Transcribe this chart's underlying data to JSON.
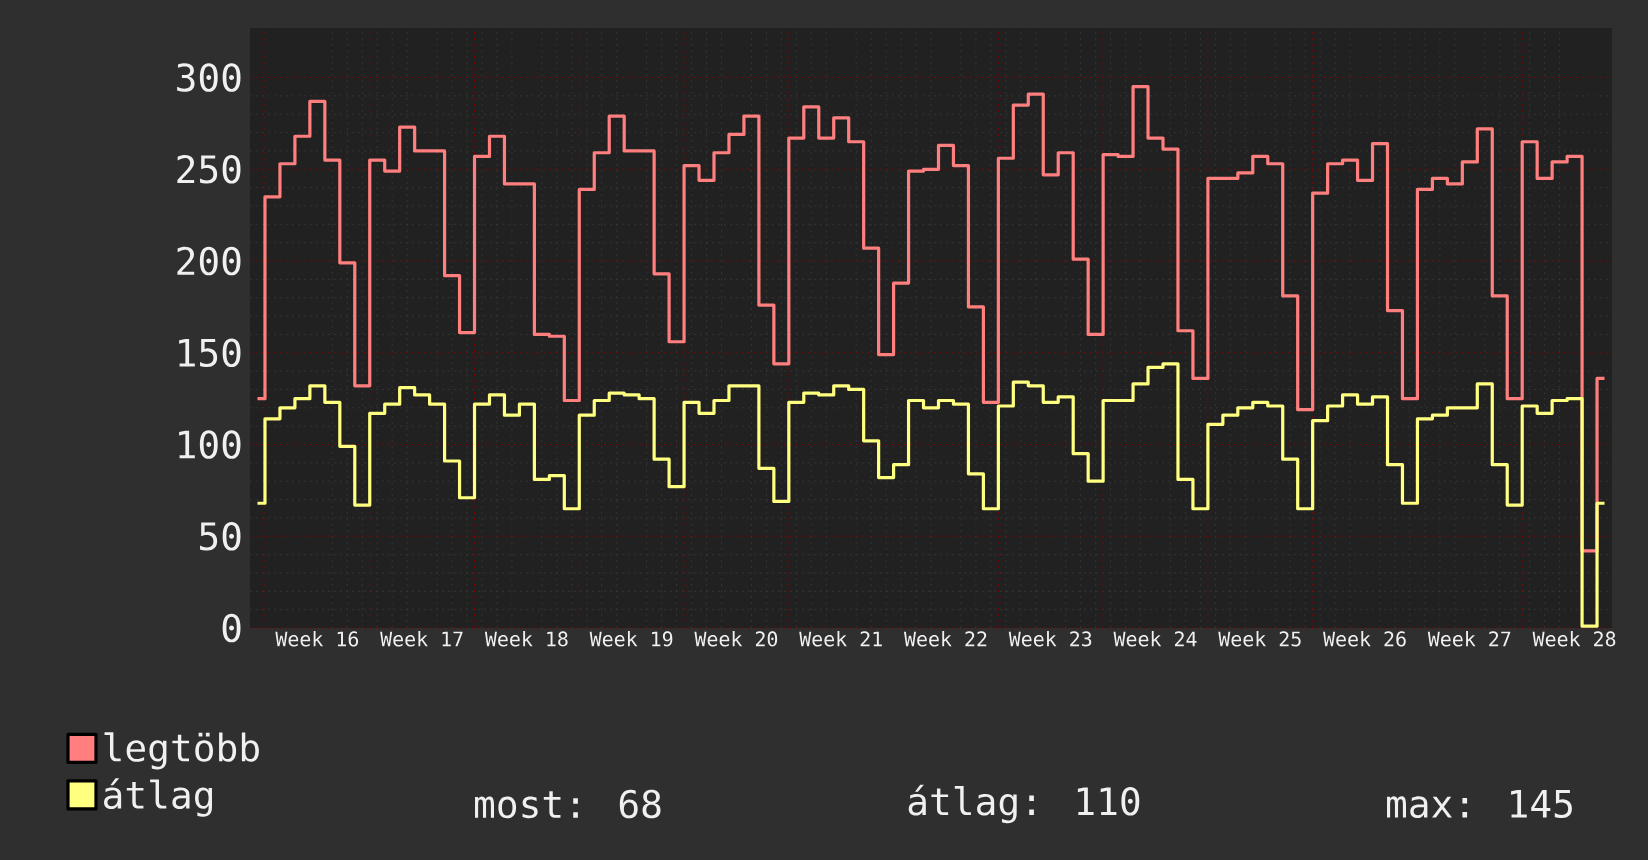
{
  "chart_data": {
    "type": "step",
    "categories": [
      null,
      null,
      null,
      null,
      "Week 16",
      null,
      null,
      null,
      null,
      null,
      null,
      "Week 17",
      null,
      null,
      null,
      null,
      null,
      null,
      "Week 18",
      null,
      null,
      null,
      null,
      null,
      null,
      "Week 19",
      null,
      null,
      null,
      null,
      null,
      null,
      "Week 20",
      null,
      null,
      null,
      null,
      null,
      null,
      "Week 21",
      null,
      null,
      null,
      null,
      null,
      null,
      "Week 22",
      null,
      null,
      null,
      null,
      null,
      null,
      "Week 23",
      null,
      null,
      null,
      null,
      null,
      null,
      "Week 24",
      null,
      null,
      null,
      null,
      null,
      null,
      "Week 25",
      null,
      null,
      null,
      null,
      null,
      null,
      "Week 26",
      null,
      null,
      null,
      null,
      null,
      null,
      "Week 27",
      null,
      null,
      null,
      null,
      null,
      null,
      "Week 28",
      null,
      null
    ],
    "series": [
      {
        "name": "legtöbb",
        "color": "#ff7f7f",
        "values": [
          125,
          235,
          253,
          268,
          287,
          255,
          199,
          132,
          255,
          249,
          273,
          260,
          260,
          192,
          161,
          257,
          268,
          242,
          242,
          160,
          159,
          124,
          239,
          259,
          279,
          260,
          260,
          193,
          156,
          252,
          244,
          259,
          269,
          279,
          176,
          144,
          267,
          284,
          267,
          278,
          265,
          207,
          149,
          188,
          249,
          250,
          263,
          252,
          175,
          123,
          256,
          285,
          291,
          247,
          259,
          201,
          160,
          258,
          257,
          295,
          267,
          261,
          162,
          136,
          245,
          245,
          248,
          257,
          253,
          181,
          119,
          237,
          253,
          255,
          244,
          264,
          173,
          125,
          239,
          245,
          242,
          254,
          272,
          181,
          125,
          265,
          245,
          254,
          257,
          42,
          136
        ]
      },
      {
        "name": "átlag",
        "color": "#ffff80",
        "values": [
          68,
          114,
          120,
          125,
          132,
          123,
          99,
          67,
          117,
          122,
          131,
          127,
          122,
          91,
          71,
          122,
          127,
          116,
          122,
          81,
          83,
          65,
          116,
          124,
          128,
          127,
          125,
          92,
          77,
          123,
          117,
          124,
          132,
          132,
          87,
          69,
          123,
          128,
          127,
          132,
          130,
          102,
          82,
          89,
          124,
          120,
          124,
          122,
          84,
          65,
          121,
          134,
          132,
          123,
          126,
          95,
          80,
          124,
          124,
          133,
          142,
          144,
          81,
          65,
          111,
          116,
          120,
          123,
          121,
          92,
          65,
          113,
          121,
          127,
          122,
          126,
          89,
          68,
          114,
          116,
          120,
          120,
          133,
          89,
          67,
          121,
          117,
          124,
          125,
          1,
          68
        ]
      }
    ],
    "ylim": [
      0,
      327
    ],
    "yticks": [
      0,
      50,
      100,
      150,
      200,
      250,
      300
    ],
    "grid": true,
    "legend": "bottom",
    "annotations": [
      "most: 68",
      "átlag: 110",
      "max: 145"
    ]
  }
}
